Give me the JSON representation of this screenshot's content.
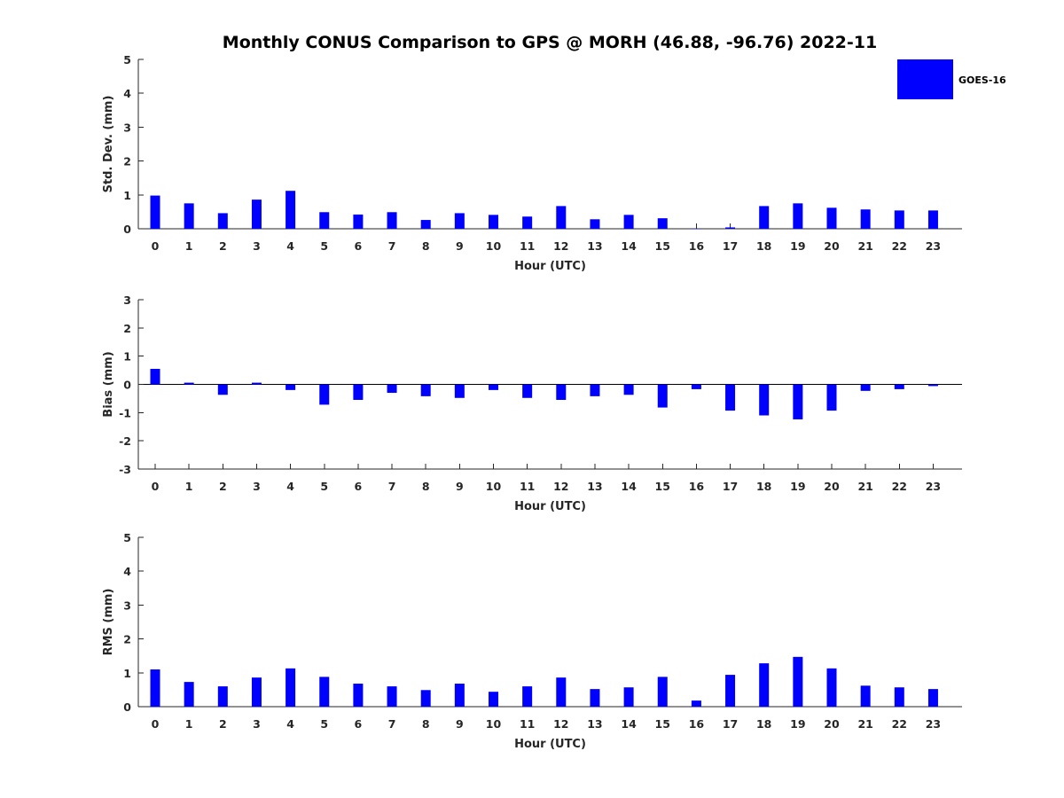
{
  "figure": {
    "title": "Monthly CONUS Comparison to GPS @ MORH (46.88, -96.76) 2022-11",
    "bar_color": "#0000ff"
  },
  "legend": {
    "entries": [
      {
        "label": "GOES-16",
        "color": "#0000ff"
      }
    ],
    "placement": "top-right"
  },
  "chart_data": [
    {
      "type": "bar",
      "xlabel": "Hour (UTC)",
      "ylabel": "Std. Dev. (mm)",
      "ylim": [
        0,
        5
      ],
      "yticks": [
        0,
        1,
        2,
        3,
        4,
        5
      ],
      "categories": [
        0,
        1,
        2,
        3,
        4,
        5,
        6,
        7,
        8,
        9,
        10,
        11,
        12,
        13,
        14,
        15,
        16,
        17,
        18,
        19,
        20,
        21,
        22,
        23
      ],
      "series": [
        {
          "name": "GOES-16",
          "values": [
            0.98,
            0.75,
            0.46,
            0.86,
            1.12,
            0.49,
            0.42,
            0.49,
            0.26,
            0.46,
            0.41,
            0.36,
            0.67,
            0.28,
            0.41,
            0.31,
            0.0,
            0.04,
            0.67,
            0.75,
            0.62,
            0.57,
            0.54,
            0.54
          ]
        }
      ],
      "grid": false
    },
    {
      "type": "bar",
      "xlabel": "Hour (UTC)",
      "ylabel": "Bias (mm)",
      "ylim": [
        -3,
        3
      ],
      "yticks": [
        -3,
        -2,
        -1,
        0,
        1,
        2,
        3
      ],
      "categories": [
        0,
        1,
        2,
        3,
        4,
        5,
        6,
        7,
        8,
        9,
        10,
        11,
        12,
        13,
        14,
        15,
        16,
        17,
        18,
        19,
        20,
        21,
        22,
        23
      ],
      "series": [
        {
          "name": "GOES-16",
          "values": [
            0.55,
            0.06,
            -0.37,
            0.06,
            -0.2,
            -0.72,
            -0.55,
            -0.3,
            -0.42,
            -0.48,
            -0.2,
            -0.48,
            -0.55,
            -0.42,
            -0.37,
            -0.82,
            -0.17,
            -0.93,
            -1.1,
            -1.24,
            -0.93,
            -0.23,
            -0.17,
            -0.06
          ]
        }
      ],
      "grid": false
    },
    {
      "type": "bar",
      "xlabel": "Hour (UTC)",
      "ylabel": "RMS (mm)",
      "ylim": [
        0,
        5
      ],
      "yticks": [
        0,
        1,
        2,
        3,
        4,
        5
      ],
      "categories": [
        0,
        1,
        2,
        3,
        4,
        5,
        6,
        7,
        8,
        9,
        10,
        11,
        12,
        13,
        14,
        15,
        16,
        17,
        18,
        19,
        20,
        21,
        22,
        23
      ],
      "series": [
        {
          "name": "GOES-16",
          "values": [
            1.1,
            0.73,
            0.6,
            0.86,
            1.13,
            0.88,
            0.68,
            0.6,
            0.49,
            0.68,
            0.44,
            0.6,
            0.86,
            0.52,
            0.57,
            0.88,
            0.18,
            0.94,
            1.28,
            1.47,
            1.13,
            0.62,
            0.57,
            0.52
          ]
        }
      ],
      "grid": false
    }
  ]
}
